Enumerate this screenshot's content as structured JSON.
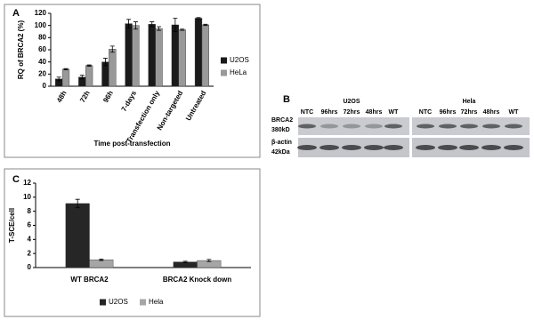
{
  "chart_data": [
    {
      "type": "bar",
      "panel": "A",
      "ylabel": "RQ of BRCA2 (%)",
      "xlabel": "Time post-transfection",
      "categories": [
        "48h",
        "72h",
        "96h",
        "7-days",
        "Transfection only",
        "Non-targeted",
        "Untreated"
      ],
      "series": [
        {
          "name": "U2OS",
          "color": "#1a1a1a",
          "values": [
            12,
            15,
            40,
            103,
            102,
            101,
            112
          ],
          "errors": [
            3,
            3,
            6,
            7,
            4,
            11,
            1
          ]
        },
        {
          "name": "HeLa",
          "color": "#999999",
          "values": [
            28,
            34,
            61,
            100,
            95,
            93,
            101
          ],
          "errors": [
            1,
            1,
            5,
            6,
            3,
            1,
            1
          ]
        }
      ],
      "ylim": [
        0,
        120
      ],
      "yticks": [
        0,
        20,
        40,
        60,
        80,
        100,
        120
      ],
      "legend": "right"
    },
    {
      "type": "bar",
      "panel": "C",
      "ylabel": "T-SCE/cell",
      "categories": [
        "WT BRCA2",
        "BRCA2 Knock down"
      ],
      "series": [
        {
          "name": "U2OS",
          "color": "#262626",
          "values": [
            9.1,
            0.8
          ],
          "errors": [
            0.6,
            0.1
          ]
        },
        {
          "name": "Hela",
          "color": "#a6a6a6",
          "values": [
            1.1,
            1.0
          ],
          "errors": [
            0.1,
            0.15
          ]
        }
      ],
      "ylim": [
        0,
        12
      ],
      "yticks": [
        0,
        2,
        4,
        6,
        8,
        10,
        12
      ],
      "legend": "bottom"
    }
  ],
  "blot": {
    "panel": "B",
    "groups": [
      {
        "name": "U2OS",
        "lanes": [
          "NTC",
          "96hrs",
          "72hrs",
          "48hrs",
          "WT"
        ]
      },
      {
        "name": "Hela",
        "lanes": [
          "NTC",
          "96hrs",
          "72hrs",
          "48hrs",
          "WT"
        ]
      }
    ],
    "rows": [
      [
        "BRCA2",
        "380kD"
      ],
      [
        "β-actin",
        "42kDa"
      ]
    ]
  }
}
